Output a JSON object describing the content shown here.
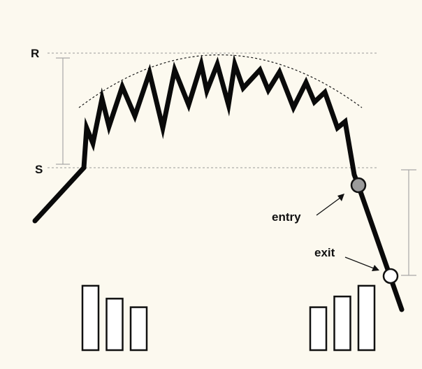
{
  "labels": {
    "resistance": "R",
    "support": "S",
    "entry": "entry",
    "exit": "exit"
  },
  "colors": {
    "background": "#fcf9ef",
    "price_line": "#0a0a0a",
    "reference_lines": "#9a9a9a",
    "range_bracket": "#a8a8a8",
    "entry_marker": "#9b9b9b",
    "exit_marker": "#ffffff",
    "volume_bar_fill": "#ffffff",
    "volume_bar_stroke": "#111111"
  },
  "volume_bars": {
    "left_group": [
      3,
      2.4,
      2
    ],
    "right_group": [
      2,
      2.5,
      3
    ]
  }
}
